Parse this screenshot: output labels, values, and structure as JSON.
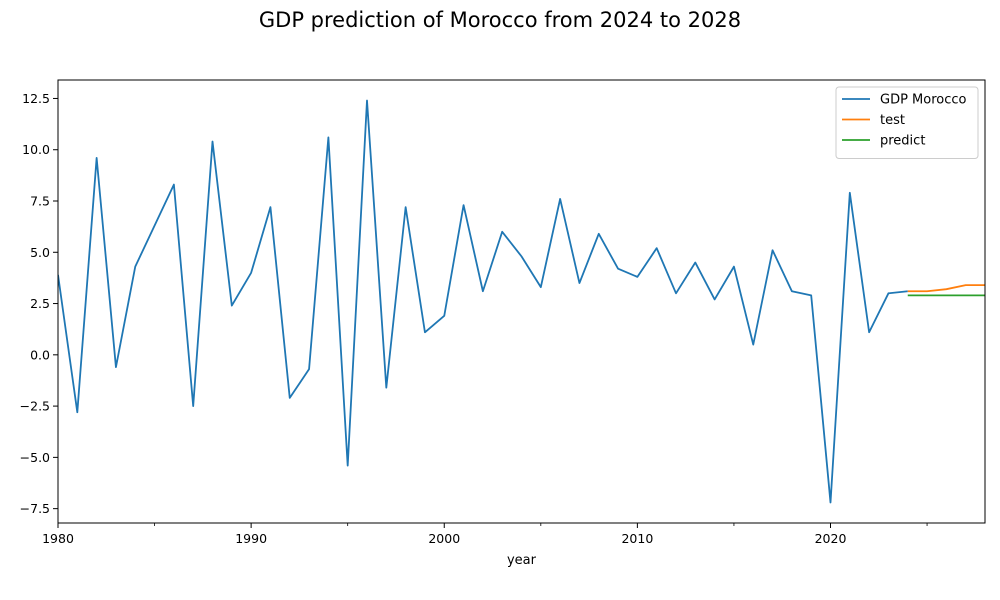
{
  "chart_data": {
    "type": "line",
    "title": "GDP prediction of Morocco from 2024 to 2028",
    "xlabel": "year",
    "ylabel": "",
    "xlim": [
      1980,
      2028
    ],
    "ylim": [
      -8.2,
      13.4
    ],
    "xticks": [
      1980,
      1990,
      2000,
      2010,
      2020
    ],
    "xticks_minor": [
      1985,
      1995,
      2005,
      2015,
      2025
    ],
    "yticks": [
      -7.5,
      -5.0,
      -2.5,
      0.0,
      2.5,
      5.0,
      7.5,
      10.0,
      12.5
    ],
    "ytick_labels": [
      "−7.5",
      "−5.0",
      "−2.5",
      "0.0",
      "2.5",
      "5.0",
      "7.5",
      "10.0",
      "12.5"
    ],
    "grid": false,
    "legend_position": "top-right",
    "series": [
      {
        "name": "GDP Morocco",
        "color": "#1f77b4",
        "x": [
          1980,
          1981,
          1982,
          1983,
          1984,
          1985,
          1986,
          1987,
          1988,
          1989,
          1990,
          1991,
          1992,
          1993,
          1994,
          1995,
          1996,
          1997,
          1998,
          1999,
          2000,
          2001,
          2002,
          2003,
          2004,
          2005,
          2006,
          2007,
          2008,
          2009,
          2010,
          2011,
          2012,
          2013,
          2014,
          2015,
          2016,
          2017,
          2018,
          2019,
          2020,
          2021,
          2022,
          2023,
          2024
        ],
        "values": [
          3.9,
          -2.8,
          9.6,
          -0.6,
          4.3,
          6.3,
          8.3,
          -2.5,
          10.4,
          2.4,
          4.0,
          7.2,
          -2.1,
          -0.7,
          10.6,
          -5.4,
          12.4,
          -1.6,
          7.2,
          1.1,
          1.9,
          7.3,
          3.1,
          6.0,
          4.8,
          3.3,
          7.6,
          3.5,
          5.9,
          4.2,
          3.8,
          5.2,
          3.0,
          4.5,
          2.7,
          4.3,
          0.5,
          5.1,
          3.1,
          2.9,
          -7.2,
          7.9,
          1.1,
          3.0,
          3.1
        ]
      },
      {
        "name": "test",
        "color": "#ff7f0e",
        "x": [
          2024,
          2025,
          2026,
          2027,
          2028
        ],
        "values": [
          3.1,
          3.1,
          3.2,
          3.4,
          3.4
        ]
      },
      {
        "name": "predict",
        "color": "#2ca02c",
        "x": [
          2024,
          2025,
          2026,
          2027,
          2028
        ],
        "values": [
          2.9,
          2.9,
          2.9,
          2.9,
          2.9
        ]
      }
    ]
  }
}
